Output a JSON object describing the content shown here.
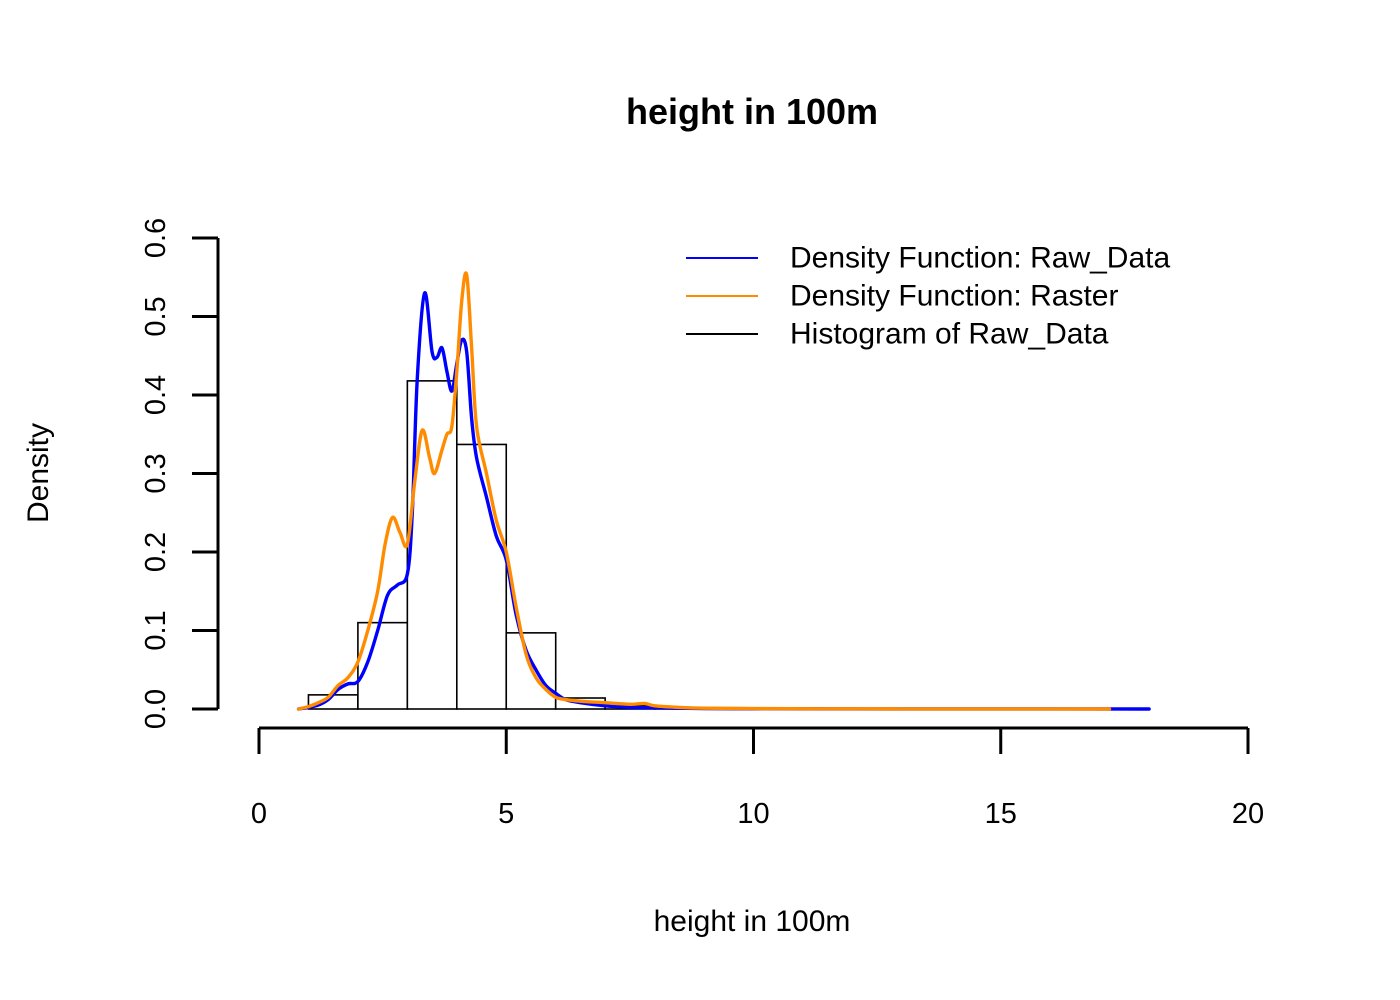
{
  "chart_data": {
    "type": "histogram",
    "title": "height in 100m",
    "xlabel": "height in 100m",
    "ylabel": "Density",
    "xlim": [
      0,
      20
    ],
    "ylim": [
      0,
      0.6
    ],
    "x_ticks": [
      "0",
      "5",
      "10",
      "15",
      "20"
    ],
    "x_tick_values": [
      0,
      5,
      10,
      15,
      20
    ],
    "y_ticks": [
      "0.0",
      "0.1",
      "0.2",
      "0.3",
      "0.4",
      "0.5",
      "0.6"
    ],
    "y_tick_values": [
      0,
      0.1,
      0.2,
      0.3,
      0.4,
      0.5,
      0.6
    ],
    "grid": false,
    "legend_position": "top-right",
    "histogram": {
      "name": "Histogram of Raw_Data",
      "color": "#000000",
      "bins": [
        {
          "x0": 1,
          "x1": 2,
          "density": 0.018
        },
        {
          "x0": 2,
          "x1": 3,
          "density": 0.11
        },
        {
          "x0": 3,
          "x1": 4,
          "density": 0.418
        },
        {
          "x0": 4,
          "x1": 5,
          "density": 0.337
        },
        {
          "x0": 5,
          "x1": 6,
          "density": 0.097
        },
        {
          "x0": 6,
          "x1": 7,
          "density": 0.014
        },
        {
          "x0": 7,
          "x1": 8,
          "density": 0.004
        },
        {
          "x0": 8,
          "x1": 9,
          "density": 0.001
        },
        {
          "x0": 9,
          "x1": 10,
          "density": 0.0005
        }
      ]
    },
    "series": [
      {
        "name": "Density Function: Raw_Data",
        "color": "#0000ff",
        "type": "line",
        "x": [
          0.8,
          1.0,
          1.2,
          1.4,
          1.6,
          1.8,
          2.0,
          2.2,
          2.4,
          2.6,
          2.8,
          3.0,
          3.1,
          3.2,
          3.35,
          3.5,
          3.6,
          3.7,
          3.8,
          3.9,
          4.0,
          4.1,
          4.2,
          4.3,
          4.4,
          4.6,
          4.8,
          5.0,
          5.2,
          5.4,
          5.6,
          5.8,
          6.0,
          6.2,
          6.5,
          7.0,
          7.5,
          8.0,
          8.5,
          9.0,
          10.0,
          12.0,
          14.0,
          16.0,
          18.0
        ],
        "y": [
          0.0,
          0.002,
          0.005,
          0.012,
          0.025,
          0.032,
          0.035,
          0.06,
          0.1,
          0.145,
          0.158,
          0.172,
          0.25,
          0.42,
          0.53,
          0.455,
          0.448,
          0.46,
          0.43,
          0.405,
          0.44,
          0.47,
          0.455,
          0.37,
          0.32,
          0.27,
          0.22,
          0.19,
          0.12,
          0.075,
          0.05,
          0.03,
          0.02,
          0.012,
          0.008,
          0.004,
          0.002,
          0.0015,
          0.001,
          0.0005,
          0.0003,
          0.0001,
          0.0001,
          0.0001,
          0.0
        ]
      },
      {
        "name": "Density Function: Raster",
        "color": "#ff8c00",
        "type": "line",
        "x": [
          0.8,
          1.0,
          1.2,
          1.4,
          1.6,
          1.8,
          2.0,
          2.2,
          2.4,
          2.55,
          2.7,
          2.85,
          3.0,
          3.15,
          3.3,
          3.45,
          3.55,
          3.7,
          3.8,
          3.9,
          4.0,
          4.1,
          4.2,
          4.3,
          4.4,
          4.6,
          4.8,
          5.0,
          5.2,
          5.4,
          5.6,
          5.8,
          6.0,
          6.2,
          6.5,
          7.0,
          7.5,
          7.8,
          8.0,
          8.5,
          9.0,
          10.0,
          12.0,
          14.0,
          16.0,
          17.2
        ],
        "y": [
          0.0,
          0.003,
          0.008,
          0.015,
          0.03,
          0.04,
          0.06,
          0.1,
          0.15,
          0.21,
          0.244,
          0.225,
          0.21,
          0.29,
          0.355,
          0.32,
          0.3,
          0.33,
          0.35,
          0.36,
          0.43,
          0.52,
          0.553,
          0.46,
          0.36,
          0.3,
          0.24,
          0.2,
          0.13,
          0.07,
          0.04,
          0.025,
          0.015,
          0.012,
          0.01,
          0.008,
          0.006,
          0.007,
          0.004,
          0.002,
          0.001,
          0.0005,
          0.0002,
          0.0001,
          0.0001,
          0.0
        ]
      }
    ],
    "legend": [
      {
        "label": "Density Function: Raw_Data",
        "color": "#0000ff"
      },
      {
        "label": "Density Function: Raster",
        "color": "#ff8c00"
      },
      {
        "label": "Histogram of Raw_Data",
        "color": "#000000"
      }
    ]
  }
}
